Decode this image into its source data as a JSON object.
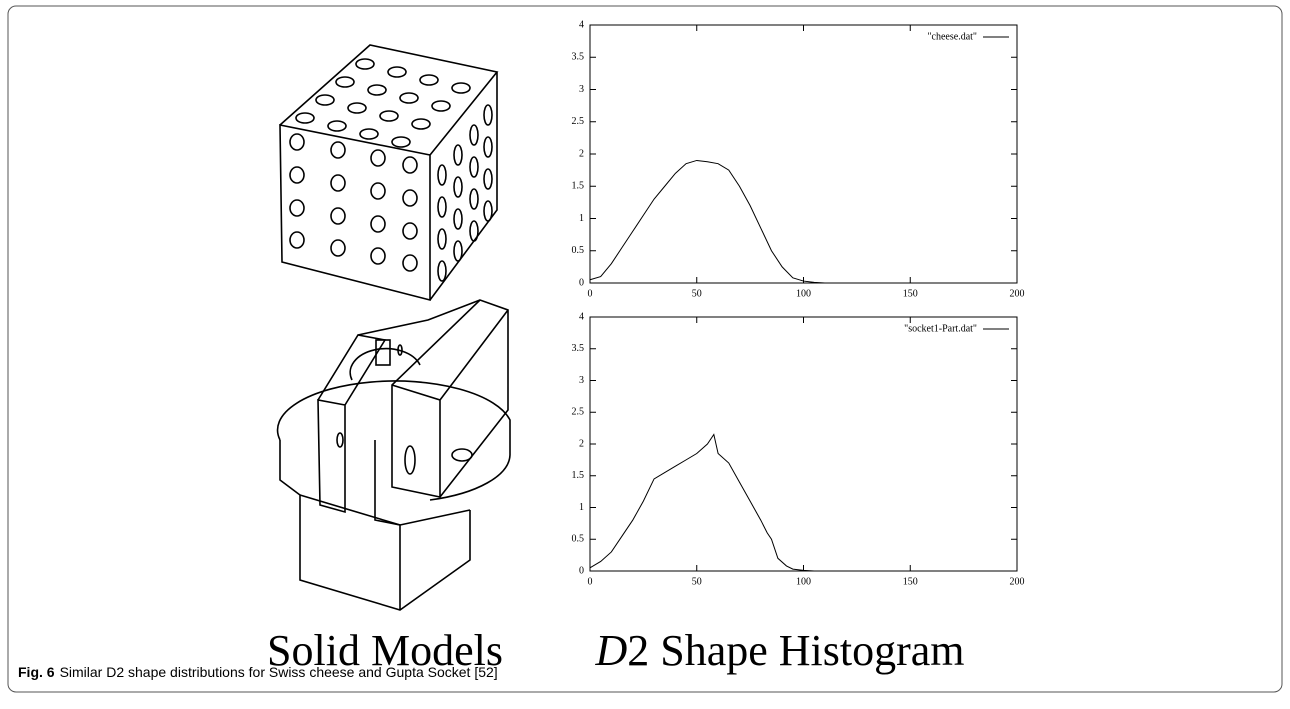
{
  "chart_data": [
    {
      "type": "line",
      "x": [
        0,
        5,
        10,
        15,
        20,
        25,
        30,
        35,
        40,
        45,
        50,
        55,
        60,
        65,
        70,
        75,
        80,
        85,
        90,
        95,
        100,
        105,
        110
      ],
      "series": [
        {
          "name": "\"cheese.dat\"",
          "color": "#000000",
          "values": [
            0.05,
            0.1,
            0.3,
            0.55,
            0.8,
            1.05,
            1.3,
            1.5,
            1.7,
            1.85,
            1.9,
            1.88,
            1.85,
            1.75,
            1.5,
            1.2,
            0.85,
            0.5,
            0.25,
            0.08,
            0.03,
            0.01,
            0
          ]
        }
      ],
      "xlim": [
        0,
        200
      ],
      "ylim": [
        0,
        4
      ],
      "xticks": [
        0,
        50,
        100,
        150,
        200
      ],
      "yticks": [
        0,
        0.5,
        1,
        1.5,
        2,
        2.5,
        3,
        3.5,
        4
      ],
      "legend": "upper right"
    },
    {
      "type": "line",
      "x": [
        0,
        5,
        10,
        15,
        20,
        25,
        30,
        35,
        40,
        45,
        50,
        55,
        58,
        60,
        65,
        70,
        75,
        80,
        83,
        85,
        88,
        92,
        95,
        100,
        105
      ],
      "series": [
        {
          "name": "\"socket1-Part.dat\"",
          "color": "#000000",
          "values": [
            0.05,
            0.15,
            0.3,
            0.55,
            0.8,
            1.1,
            1.45,
            1.55,
            1.65,
            1.75,
            1.85,
            2.0,
            2.15,
            1.85,
            1.7,
            1.4,
            1.1,
            0.8,
            0.6,
            0.5,
            0.2,
            0.08,
            0.03,
            0.01,
            0
          ]
        }
      ],
      "xlim": [
        0,
        200
      ],
      "ylim": [
        0,
        4
      ],
      "xticks": [
        0,
        50,
        100,
        150,
        200
      ],
      "yticks": [
        0,
        0.5,
        1,
        1.5,
        2,
        2.5,
        3,
        3.5,
        4
      ],
      "legend": "upper right"
    }
  ],
  "figure": {
    "models_label": "Solid Models",
    "histogram_label": [
      "D",
      "2 Shape Histogram"
    ],
    "caption": {
      "label": "Fig. 6",
      "text": "Similar D2 shape distributions for Swiss cheese and Gupta Socket [52]"
    }
  }
}
